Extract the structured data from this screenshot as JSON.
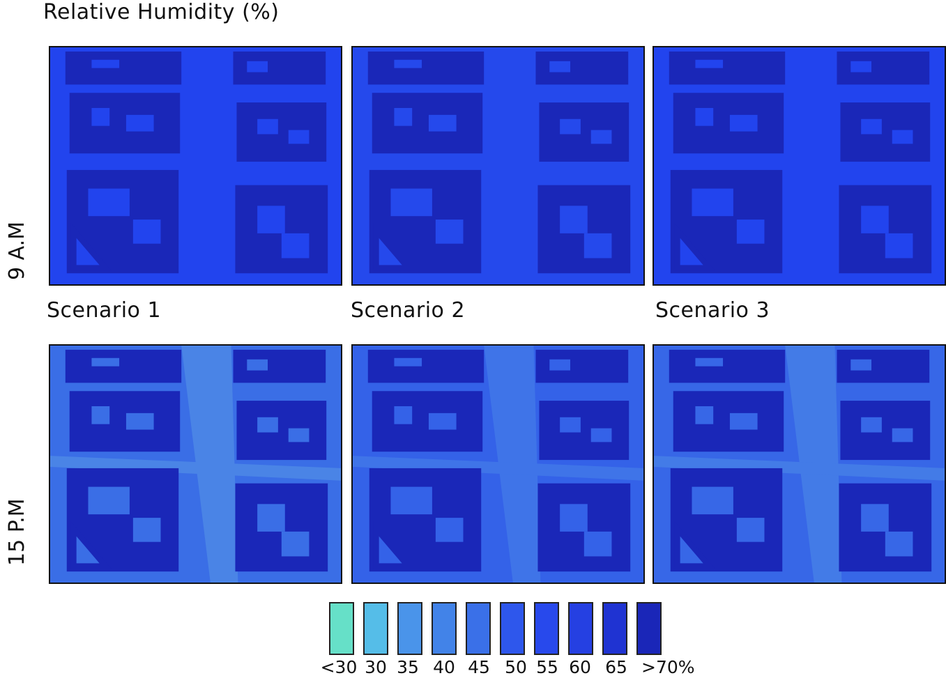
{
  "title": "Relative Humidity (%)",
  "rows": [
    {
      "label": "9 A.M"
    },
    {
      "label": "15 P.M"
    }
  ],
  "scenarios": [
    "Scenario 1",
    "Scenario 2",
    "Scenario 3"
  ],
  "colors": {
    "building": "#1a27b8",
    "am_ground": [
      "#2244ee",
      "#2549ec",
      "#2244ee"
    ],
    "pm_ground": [
      "#3a6ee6",
      "#3462e8",
      "#3767e7"
    ],
    "pm_street": [
      "#4a84e6",
      "#3f74e8",
      "#437be7"
    ]
  },
  "legend": {
    "colors": [
      "#66e0c8",
      "#55bde8",
      "#4a94ea",
      "#4283e8",
      "#3a70e8",
      "#2e57ec",
      "#2849ec",
      "#2540e2",
      "#1f33d2",
      "#1a26b8"
    ],
    "labels": [
      "<30",
      "30",
      "35",
      "40",
      "45",
      "50",
      "55",
      "60",
      "65",
      ">70%"
    ]
  }
}
